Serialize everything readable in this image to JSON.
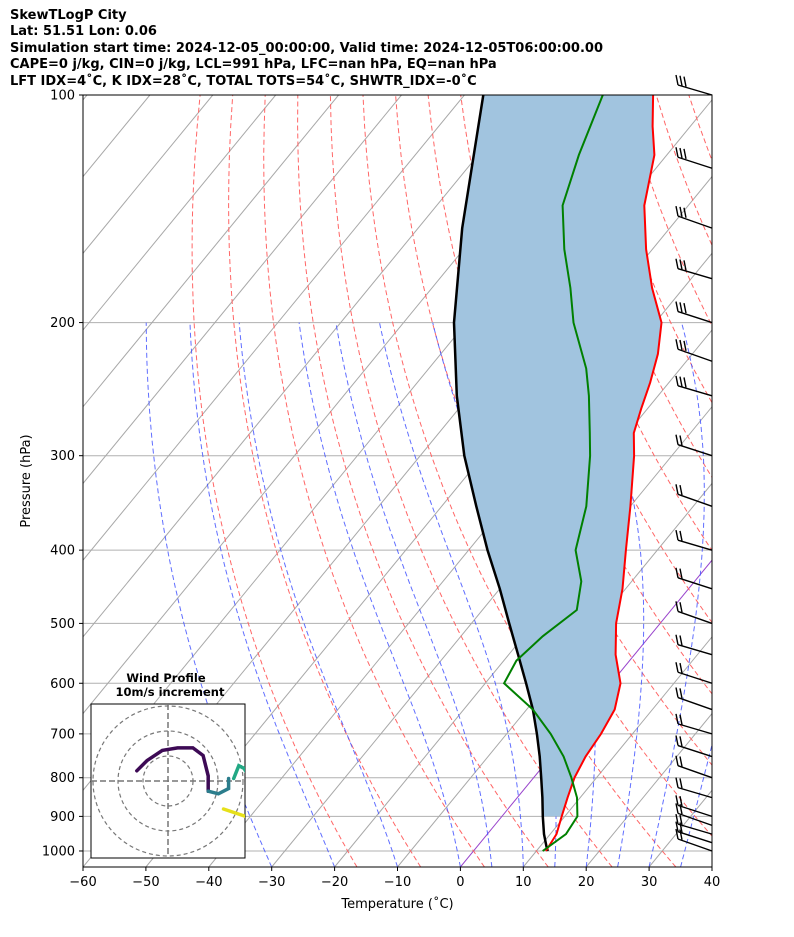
{
  "header": {
    "line1": "SkewTLogP City",
    "line2": "Lat: 51.51   Lon: 0.06",
    "line3": "Simulation start time: 2024-12-05_00:00:00, Valid time: 2024-12-05T06:00:00.00",
    "line4": "CAPE=0 j/kg, CIN=0 j/kg, LCL=991 hPa, LFC=nan hPa, EQ=nan hPa",
    "line5": "LFT IDX=4˚C, K IDX=28˚C, TOTAL TOTS=54˚C, SHWTR_IDX=-0˚C"
  },
  "chart_data": {
    "type": "line",
    "subtype": "skew-t log-p",
    "xlabel": "Temperature (˚C)",
    "ylabel": "Pressure (hPa)",
    "xlim": [
      -60,
      40
    ],
    "ylim": [
      1050,
      100
    ],
    "yscale": "log",
    "xticks": [
      "−60",
      "−50",
      "−40",
      "−30",
      "−20",
      "−10",
      "0",
      "10",
      "20",
      "30",
      "40"
    ],
    "yticks": [
      "100",
      "200",
      "300",
      "400",
      "500",
      "600",
      "700",
      "800",
      "900",
      "1000"
    ],
    "grid": true,
    "colors": {
      "temperature": "#ff0000",
      "dewpoint": "#008000",
      "parcel": "#000000",
      "shade": "#a1c4df",
      "dry_adiabats": "#ff6666",
      "moist_adiabats": "#4455ff",
      "mixing_ratio": "#888888",
      "freezing": "#9944cc"
    },
    "series": [
      {
        "name": "temperature",
        "points": [
          [
            1000,
            11.5
          ],
          [
            950,
            11
          ],
          [
            900,
            9.5
          ],
          [
            850,
            8
          ],
          [
            800,
            6.5
          ],
          [
            750,
            5.5
          ],
          [
            700,
            5
          ],
          [
            650,
            4
          ],
          [
            600,
            1.5
          ],
          [
            550,
            -3
          ],
          [
            500,
            -7
          ],
          [
            450,
            -10.5
          ],
          [
            400,
            -15
          ],
          [
            350,
            -20
          ],
          [
            300,
            -26
          ],
          [
            280,
            -29
          ],
          [
            260,
            -31
          ],
          [
            240,
            -33
          ],
          [
            220,
            -35.5
          ],
          [
            200,
            -39
          ],
          [
            180,
            -45
          ],
          [
            160,
            -51
          ],
          [
            140,
            -57
          ],
          [
            120,
            -62
          ],
          [
            110,
            -66
          ],
          [
            100,
            -70
          ]
        ]
      },
      {
        "name": "dewpoint",
        "points": [
          [
            1000,
            11
          ],
          [
            950,
            12.5
          ],
          [
            900,
            12
          ],
          [
            850,
            9.5
          ],
          [
            800,
            6
          ],
          [
            750,
            2
          ],
          [
            700,
            -3
          ],
          [
            650,
            -9
          ],
          [
            600,
            -17
          ],
          [
            560,
            -18
          ],
          [
            520,
            -17
          ],
          [
            480,
            -15
          ],
          [
            440,
            -18
          ],
          [
            400,
            -23
          ],
          [
            350,
            -27
          ],
          [
            300,
            -33
          ],
          [
            280,
            -36
          ],
          [
            250,
            -41
          ],
          [
            230,
            -45
          ],
          [
            200,
            -53
          ],
          [
            180,
            -58
          ],
          [
            160,
            -64
          ],
          [
            140,
            -70
          ],
          [
            120,
            -74
          ],
          [
            100,
            -78
          ]
        ]
      },
      {
        "name": "parcel",
        "points": [
          [
            1000,
            11.8
          ],
          [
            990,
            11.2
          ],
          [
            950,
            9
          ],
          [
            900,
            6.5
          ],
          [
            850,
            4
          ],
          [
            800,
            1.2
          ],
          [
            750,
            -1.8
          ],
          [
            700,
            -5.2
          ],
          [
            650,
            -9
          ],
          [
            600,
            -13.5
          ],
          [
            550,
            -18.5
          ],
          [
            500,
            -24
          ],
          [
            450,
            -30
          ],
          [
            400,
            -37
          ],
          [
            350,
            -44.5
          ],
          [
            300,
            -53
          ],
          [
            250,
            -62
          ],
          [
            200,
            -72
          ],
          [
            150,
            -83
          ],
          [
            100,
            -97
          ]
        ]
      }
    ],
    "wind_barbs": [
      "1000",
      "975",
      "950",
      "925",
      "900",
      "850",
      "800",
      "750",
      "700",
      "650",
      "600",
      "550",
      "500",
      "450",
      "400",
      "350",
      "300",
      "250",
      "225",
      "200",
      "175",
      "150",
      "125",
      "100"
    ],
    "hodograph": {
      "title": "Wind Profile",
      "subtitle": "10m/s increment",
      "segments": [
        {
          "color": "#3d0a55",
          "points": [
            [
              -12,
              2
            ],
            [
              -10,
              4
            ],
            [
              -7,
              6
            ],
            [
              -4,
              6.5
            ],
            [
              -1,
              6.5
            ],
            [
              1,
              5
            ],
            [
              2,
              1
            ],
            [
              2,
              -2
            ]
          ]
        },
        {
          "color": "#2b7d8c",
          "points": [
            [
              2,
              -2
            ],
            [
              4,
              -2.5
            ],
            [
              6,
              -1.5
            ],
            [
              6,
              0.5
            ]
          ]
        },
        {
          "color": "#22a884",
          "points": [
            [
              7,
              0.5
            ],
            [
              8,
              3
            ],
            [
              9,
              2.5
            ],
            [
              10,
              1
            ]
          ]
        },
        {
          "color": "#e6e01a",
          "points": [
            [
              5,
              -5.5
            ],
            [
              8,
              -6.5
            ],
            [
              11,
              -7.5
            ]
          ]
        }
      ]
    }
  }
}
